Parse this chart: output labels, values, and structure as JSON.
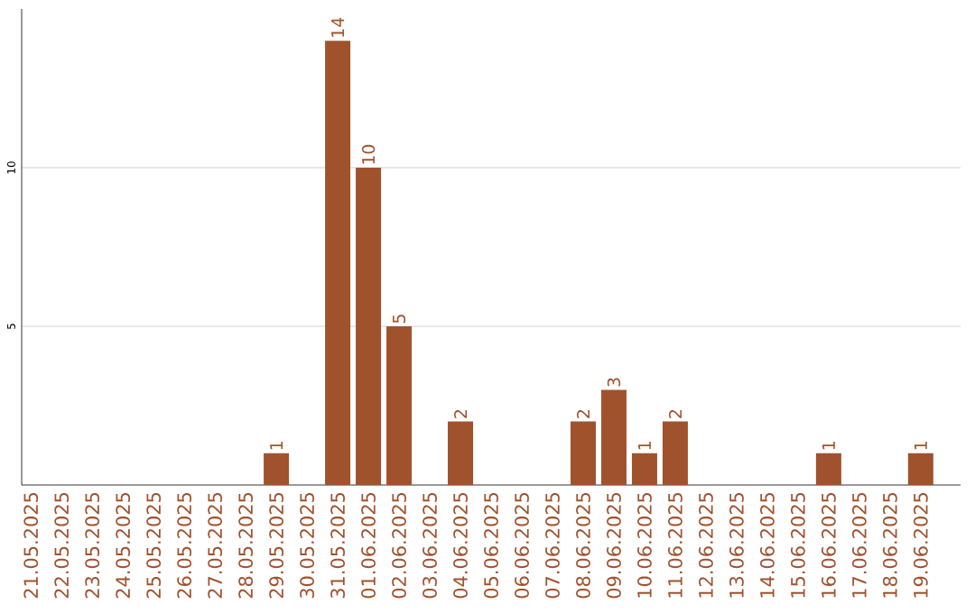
{
  "chart_data": {
    "type": "bar",
    "categories": [
      "21.05.2025",
      "22.05.2025",
      "23.05.2025",
      "24.05.2025",
      "25.05.2025",
      "26.05.2025",
      "27.05.2025",
      "28.05.2025",
      "29.05.2025",
      "30.05.2025",
      "31.05.2025",
      "01.06.2025",
      "02.06.2025",
      "03.06.2025",
      "04.06.2025",
      "05.06.2025",
      "06.06.2025",
      "07.06.2025",
      "08.06.2025",
      "09.06.2025",
      "10.06.2025",
      "11.06.2025",
      "12.06.2025",
      "13.06.2025",
      "14.06.2025",
      "15.06.2025",
      "16.06.2025",
      "17.06.2025",
      "18.06.2025",
      "19.06.2025"
    ],
    "values": [
      0,
      0,
      0,
      0,
      0,
      0,
      0,
      0,
      1,
      0,
      14,
      10,
      5,
      0,
      2,
      0,
      0,
      0,
      2,
      3,
      1,
      2,
      0,
      0,
      0,
      0,
      1,
      0,
      0,
      1
    ],
    "value_labels": [
      null,
      null,
      null,
      null,
      null,
      null,
      null,
      null,
      "1",
      null,
      "14",
      "10",
      "5",
      null,
      "2",
      null,
      null,
      null,
      "2",
      "3",
      "1",
      "2",
      null,
      null,
      null,
      null,
      "1",
      null,
      null,
      "1"
    ],
    "color": "#a0522d",
    "ylim": [
      0,
      15
    ],
    "yticks": [
      5,
      10
    ],
    "grid": "y"
  }
}
